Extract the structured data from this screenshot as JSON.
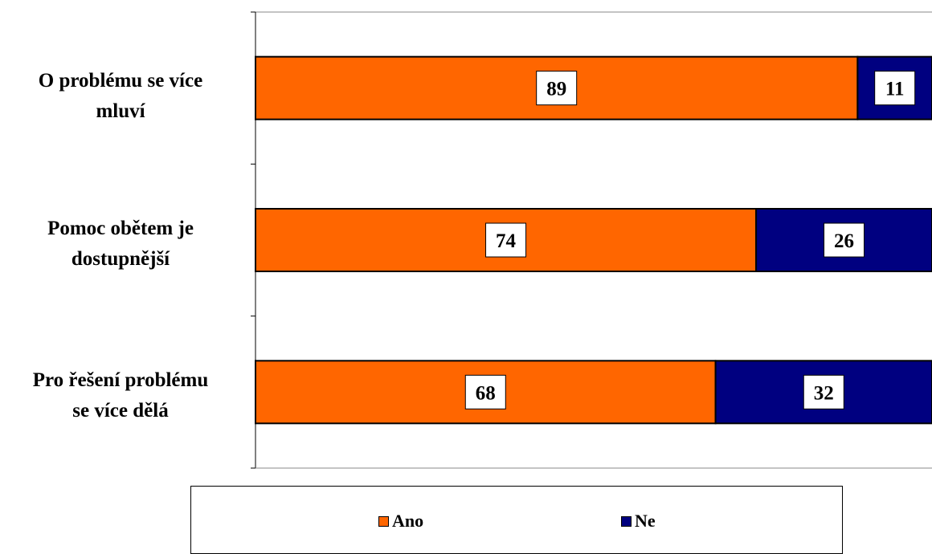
{
  "chart_data": {
    "type": "bar",
    "orientation": "horizontal",
    "stacked": true,
    "categories": [
      "O problému se více mluví",
      "Pomoc obětem je dostupnější",
      "Pro řešení problému se více dělá"
    ],
    "category_lines": [
      [
        "O problému se více",
        "mluví"
      ],
      [
        "Pomoc obětem je",
        "dostupnější"
      ],
      [
        "Pro řešení problému",
        "se více dělá"
      ]
    ],
    "series": [
      {
        "name": "Ano",
        "values": [
          89,
          74,
          68
        ],
        "color": "#FF6600"
      },
      {
        "name": "Ne",
        "values": [
          11,
          26,
          32
        ],
        "color": "#000080"
      }
    ],
    "xlim": [
      0,
      100
    ],
    "data_labels": true,
    "legend": "bottom",
    "grid": false
  }
}
